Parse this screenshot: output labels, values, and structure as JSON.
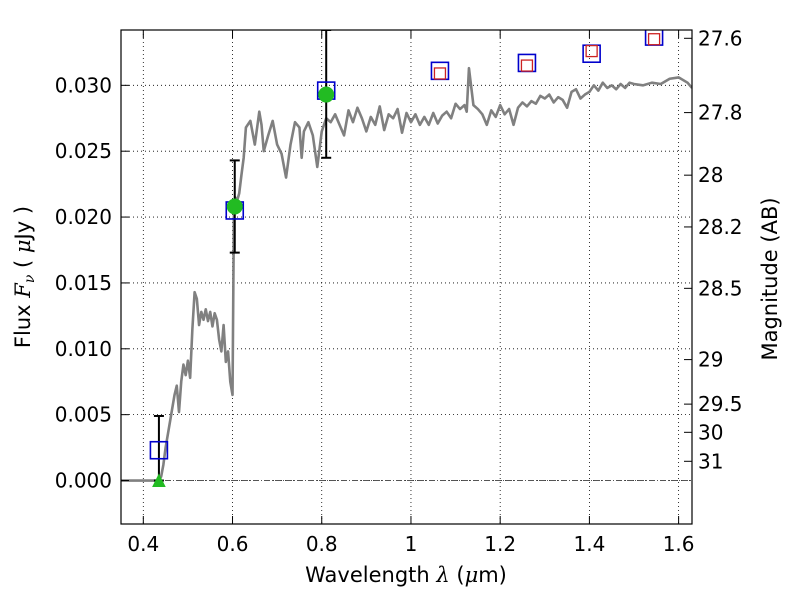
{
  "chart_data": {
    "type": "scatter",
    "xlabel_prefix": "Wavelength  ",
    "xlabel_symbol": "λ",
    "xlabel_unit_open": " (",
    "xlabel_unit_mu": "μ",
    "xlabel_unit_close": "m)",
    "ylabel_prefix": "Flux  ",
    "ylabel_symbol": "F",
    "ylabel_subscript": "ν",
    "ylabel_unit_open": "  ( ",
    "ylabel_unit_mu": "μ",
    "ylabel_unit_close": "Jy )",
    "y2label": "Magnitude (AB)",
    "xlim": [
      0.35,
      1.63
    ],
    "ylim": [
      -0.0033,
      0.0342
    ],
    "grid": true,
    "x_ticks": [
      {
        "value": 0.4,
        "label": "0.4"
      },
      {
        "value": 0.6,
        "label": "0.6"
      },
      {
        "value": 0.8,
        "label": "0.8"
      },
      {
        "value": 1.0,
        "label": "1"
      },
      {
        "value": 1.2,
        "label": "1.2"
      },
      {
        "value": 1.4,
        "label": "1.4"
      },
      {
        "value": 1.6,
        "label": "1.6"
      }
    ],
    "y_ticks": [
      {
        "value": 0.0,
        "label": "0.000"
      },
      {
        "value": 0.005,
        "label": "0.005"
      },
      {
        "value": 0.01,
        "label": "0.010"
      },
      {
        "value": 0.015,
        "label": "0.015"
      },
      {
        "value": 0.02,
        "label": "0.020"
      },
      {
        "value": 0.025,
        "label": "0.025"
      },
      {
        "value": 0.03,
        "label": "0.030"
      }
    ],
    "magnitude_ticks": [
      {
        "flux": 0.03357,
        "label": "27.6"
      },
      {
        "flux": 0.02793,
        "label": "27.8"
      },
      {
        "flux": 0.02318,
        "label": "28"
      },
      {
        "flux": 0.01925,
        "label": "28.2"
      },
      {
        "flux": 0.01459,
        "label": "28.5"
      },
      {
        "flux": 0.00918,
        "label": "29"
      },
      {
        "flux": 0.0058,
        "label": "29.5"
      },
      {
        "flux": 0.00366,
        "label": "30"
      },
      {
        "flux": 0.00146,
        "label": "31"
      }
    ],
    "zero_line_value": 0.0,
    "model_spectrum": {
      "color": "#808080",
      "x": [
        0.35,
        0.4,
        0.435,
        0.44,
        0.445,
        0.45,
        0.46,
        0.47,
        0.475,
        0.48,
        0.485,
        0.49,
        0.495,
        0.5,
        0.505,
        0.51,
        0.515,
        0.52,
        0.525,
        0.53,
        0.535,
        0.54,
        0.545,
        0.55,
        0.555,
        0.56,
        0.565,
        0.57,
        0.575,
        0.58,
        0.585,
        0.59,
        0.595,
        0.6,
        0.603,
        0.606,
        0.61,
        0.615,
        0.62,
        0.625,
        0.63,
        0.64,
        0.65,
        0.66,
        0.665,
        0.67,
        0.68,
        0.69,
        0.7,
        0.71,
        0.72,
        0.73,
        0.74,
        0.75,
        0.755,
        0.76,
        0.77,
        0.78,
        0.79,
        0.8,
        0.81,
        0.82,
        0.83,
        0.84,
        0.85,
        0.86,
        0.87,
        0.88,
        0.89,
        0.9,
        0.91,
        0.92,
        0.93,
        0.94,
        0.95,
        0.96,
        0.97,
        0.98,
        0.99,
        1.0,
        1.01,
        1.02,
        1.03,
        1.04,
        1.05,
        1.06,
        1.07,
        1.08,
        1.09,
        1.1,
        1.11,
        1.12,
        1.125,
        1.13,
        1.14,
        1.15,
        1.16,
        1.17,
        1.18,
        1.19,
        1.2,
        1.21,
        1.22,
        1.23,
        1.24,
        1.25,
        1.26,
        1.27,
        1.28,
        1.29,
        1.3,
        1.31,
        1.32,
        1.33,
        1.34,
        1.35,
        1.36,
        1.37,
        1.38,
        1.39,
        1.4,
        1.41,
        1.42,
        1.43,
        1.44,
        1.45,
        1.46,
        1.47,
        1.48,
        1.49,
        1.5,
        1.52,
        1.54,
        1.56,
        1.58,
        1.6,
        1.62,
        1.63
      ],
      "y": [
        0.0,
        0.0,
        0.0,
        0.0003,
        0.0012,
        0.0025,
        0.0045,
        0.0065,
        0.0072,
        0.0052,
        0.0075,
        0.0088,
        0.008,
        0.0091,
        0.0078,
        0.0115,
        0.0143,
        0.0138,
        0.0118,
        0.0128,
        0.0122,
        0.013,
        0.0121,
        0.0128,
        0.0117,
        0.0127,
        0.0122,
        0.0107,
        0.0098,
        0.0118,
        0.009,
        0.0098,
        0.0075,
        0.0065,
        0.02,
        0.0215,
        0.0212,
        0.0218,
        0.0232,
        0.0245,
        0.0268,
        0.0273,
        0.0255,
        0.028,
        0.027,
        0.025,
        0.0262,
        0.0273,
        0.0255,
        0.0248,
        0.023,
        0.0255,
        0.0272,
        0.0268,
        0.0245,
        0.0265,
        0.0272,
        0.0262,
        0.0238,
        0.0265,
        0.0275,
        0.0272,
        0.0278,
        0.027,
        0.0262,
        0.0281,
        0.0272,
        0.0283,
        0.0275,
        0.0265,
        0.0276,
        0.027,
        0.0284,
        0.0266,
        0.0278,
        0.0275,
        0.0282,
        0.0264,
        0.0279,
        0.0272,
        0.0278,
        0.027,
        0.0276,
        0.027,
        0.0279,
        0.0271,
        0.0277,
        0.028,
        0.0275,
        0.0286,
        0.0282,
        0.0285,
        0.028,
        0.0313,
        0.0285,
        0.0282,
        0.0278,
        0.027,
        0.0281,
        0.0276,
        0.0285,
        0.0278,
        0.0282,
        0.027,
        0.0283,
        0.0287,
        0.0284,
        0.0288,
        0.0286,
        0.0292,
        0.029,
        0.0293,
        0.0287,
        0.0291,
        0.0289,
        0.0283,
        0.0295,
        0.0297,
        0.029,
        0.0293,
        0.0295,
        0.03,
        0.0296,
        0.0302,
        0.0298,
        0.03,
        0.0297,
        0.0301,
        0.0298,
        0.0302,
        0.0301,
        0.03,
        0.0302,
        0.0301,
        0.0305,
        0.0306,
        0.0302,
        0.0298
      ]
    },
    "observed_points": {
      "series_color": "#0000cc",
      "x": [
        0.435,
        0.605,
        0.81,
        1.065,
        1.26,
        1.405,
        1.545
      ],
      "y": [
        0.0023,
        0.0205,
        0.0296,
        0.0311,
        0.0317,
        0.0324,
        0.0337
      ]
    },
    "inner_squares": {
      "series_color": "#cc2222",
      "x": [
        1.065,
        1.26,
        1.405,
        1.545
      ],
      "y": [
        0.0309,
        0.0315,
        0.0326,
        0.0335
      ]
    },
    "detections": {
      "series_color": "#22bb22",
      "x": [
        0.605,
        0.81
      ],
      "y": [
        0.0208,
        0.0293
      ]
    },
    "upper_limit": {
      "series_color": "#22bb22",
      "x": 0.435,
      "y": 0.0
    },
    "error_bars": [
      {
        "x": 0.435,
        "low": 0.0,
        "high": 0.0049
      },
      {
        "x": 0.605,
        "low": 0.0173,
        "high": 0.0243
      },
      {
        "x": 0.81,
        "low": 0.0245,
        "high": 0.0342
      }
    ]
  }
}
